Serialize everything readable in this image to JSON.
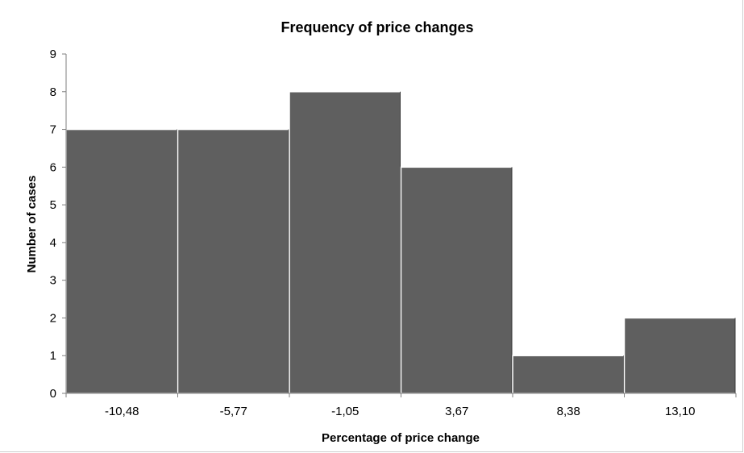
{
  "chart_data": {
    "type": "bar",
    "title": "Frequency of price changes",
    "xlabel": "Percentage of price change",
    "ylabel": "Number of cases",
    "categories": [
      "-10,48",
      "-5,77",
      "-1,05",
      "3,67",
      "8,38",
      "13,10"
    ],
    "values": [
      7,
      7,
      8,
      6,
      1,
      2
    ],
    "ylim": [
      0,
      9
    ],
    "yticks": [
      "0",
      "1",
      "2",
      "3",
      "4",
      "5",
      "6",
      "7",
      "8",
      "9"
    ],
    "grid": false,
    "legend": "none",
    "bar_color": "#5f5f5f",
    "bar_edge_color": "#ffffff"
  }
}
